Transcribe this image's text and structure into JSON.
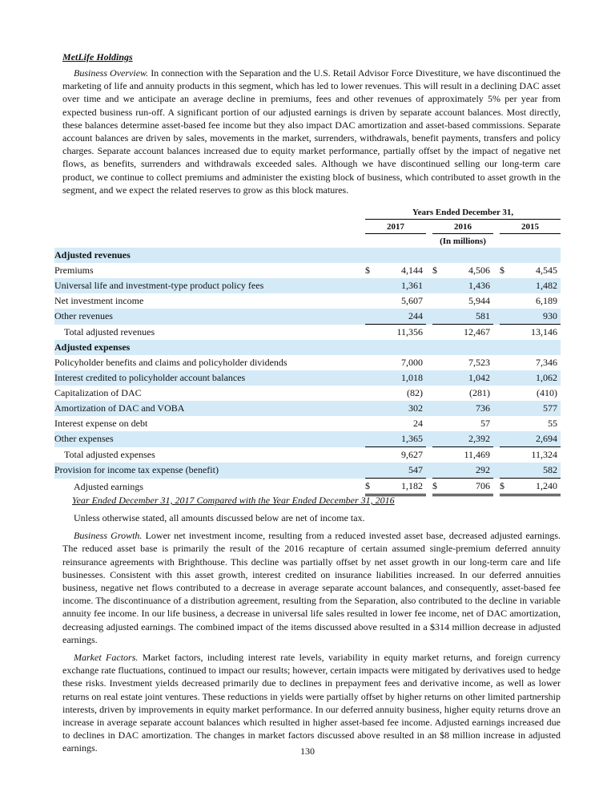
{
  "section_title": "MetLife Holdings",
  "intro": {
    "lead": "Business Overview.",
    "text": "In connection with the Separation and the U.S. Retail Advisor Force Divestiture, we have discontinued the marketing of life and annuity products in this segment, which has led to lower revenues. This will result in a declining DAC asset over time and we anticipate an average decline in premiums, fees and other revenues of approximately 5% per year from expected business run-off. A significant portion of our adjusted earnings is driven by separate account balances. Most directly, these balances determine asset-based fee income but they also impact DAC amortization and asset-based commissions. Separate account balances are driven by sales, movements in the market, surrenders, withdrawals, benefit payments, transfers and policy charges. Separate account balances increased due to equity market performance, partially offset by the impact of negative net flows, as benefits, surrenders and withdrawals exceeded sales. Although we have discontinued selling our long-term care product, we continue to collect premiums and administer the existing block of business, which contributed to asset growth in the segment, and we expect the related reserves to grow as this block matures."
  },
  "table": {
    "period_header": "Years Ended December 31,",
    "years": [
      "2017",
      "2016",
      "2015"
    ],
    "units": "(In millions)",
    "rows": [
      {
        "label": "Adjusted revenues",
        "style": "section"
      },
      {
        "label": "Premiums",
        "prefix": "$",
        "cells": [
          "4,144",
          "4,506",
          "4,545"
        ]
      },
      {
        "label": "Universal life and investment-type product policy fees",
        "cells": [
          "1,361",
          "1,436",
          "1,482"
        ]
      },
      {
        "label": "Net investment income",
        "cells": [
          "5,607",
          "5,944",
          "6,189"
        ]
      },
      {
        "label": "Other revenues",
        "cells": [
          "244",
          "581",
          "930"
        ]
      },
      {
        "label": "Total adjusted revenues",
        "style": "total",
        "cells": [
          "11,356",
          "12,467",
          "13,146"
        ]
      },
      {
        "label": "Adjusted expenses",
        "style": "section"
      },
      {
        "label": "Policyholder benefits and claims and policyholder dividends",
        "cells": [
          "7,000",
          "7,523",
          "7,346"
        ]
      },
      {
        "label": "Interest credited to policyholder account balances",
        "cells": [
          "1,018",
          "1,042",
          "1,062"
        ]
      },
      {
        "label": "Capitalization of DAC",
        "cells": [
          "(82)",
          "(281)",
          "(410)"
        ]
      },
      {
        "label": "Amortization of DAC and VOBA",
        "cells": [
          "302",
          "736",
          "577"
        ]
      },
      {
        "label": "Interest expense on debt",
        "cells": [
          "24",
          "57",
          "55"
        ]
      },
      {
        "label": "Other expenses",
        "cells": [
          "1,365",
          "2,392",
          "2,694"
        ]
      },
      {
        "label": "Total adjusted expenses",
        "style": "total",
        "cells": [
          "9,627",
          "11,469",
          "11,324"
        ]
      },
      {
        "label": "Provision for income tax expense (benefit)",
        "cells": [
          "547",
          "292",
          "582"
        ]
      },
      {
        "label": "Adjusted earnings",
        "style": "grand-total",
        "prefix": "$",
        "cells": [
          "1,182",
          "706",
          "1,240"
        ]
      }
    ]
  },
  "comparison_heading": "Year Ended December 31, 2017 Compared with the Year Ended December 31, 2016",
  "paragraphs": [
    {
      "text": "Unless otherwise stated, all amounts discussed below are net of income tax."
    },
    {
      "lead": "Business Growth.",
      "text": "Lower net investment income, resulting from a reduced invested asset base, decreased adjusted earnings. The reduced asset base is primarily the result of the 2016 recapture of certain assumed single-premium deferred annuity reinsurance agreements with Brighthouse. This decline was partially offset by net asset growth in our long-term care and life businesses. Consistent with this asset growth, interest credited on insurance liabilities increased. In our deferred annuities business, negative net flows contributed to a decrease in average separate account balances, and consequently, asset-based fee income. The discontinuance of a distribution agreement, resulting from the Separation, also contributed to the decline in variable annuity fee income. In our life business, a decrease in universal life sales resulted in lower fee income, net of DAC amortization, decreasing adjusted earnings. The combined impact of the items discussed above resulted in a $314 million decrease in adjusted earnings."
    },
    {
      "lead": "Market Factors.",
      "text": "Market factors, including interest rate levels, variability in equity market returns, and foreign currency exchange rate fluctuations, continued to impact our results; however, certain impacts were mitigated by derivatives used to hedge these risks. Investment yields decreased primarily due to declines in prepayment fees and derivative income, as well as lower returns on real estate joint ventures. These reductions in yields were partially offset by higher returns on other limited partnership interests, driven by improvements in equity market performance. In our deferred annuity business, higher equity returns drove an increase in average separate account balances which resulted in higher asset-based fee income. Adjusted earnings increased due to declines in DAC amortization. The changes in market factors discussed above resulted in an $8 million increase in adjusted earnings."
    }
  ],
  "page_number": "130"
}
